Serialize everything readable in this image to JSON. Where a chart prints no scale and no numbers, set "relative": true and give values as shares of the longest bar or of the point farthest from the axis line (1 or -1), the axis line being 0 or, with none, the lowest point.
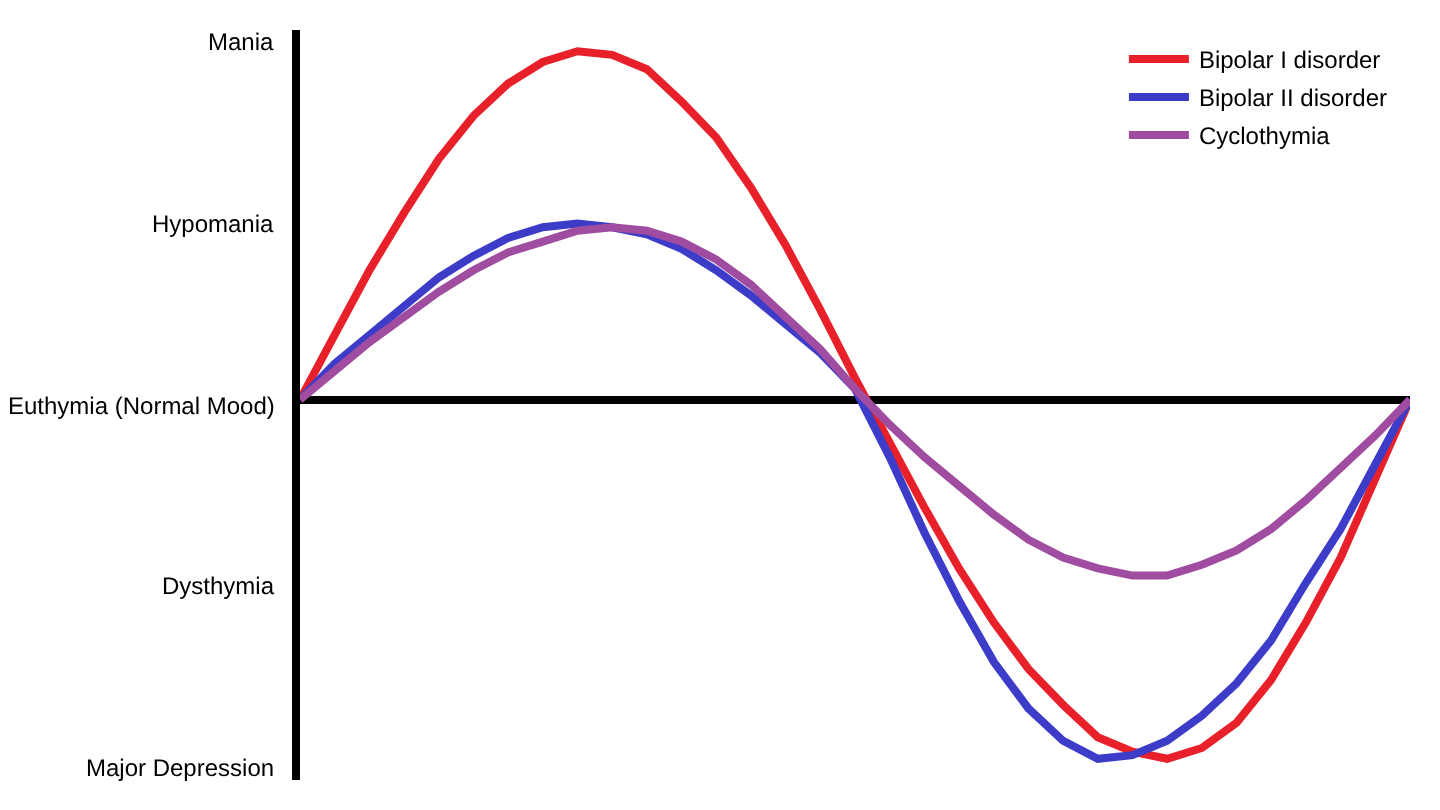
{
  "chart_data": {
    "type": "line",
    "relative": true,
    "categories": [
      null,
      null,
      null,
      null,
      null,
      null,
      null,
      null,
      null,
      null,
      null,
      null,
      null,
      null,
      null,
      null,
      null,
      null,
      null,
      null,
      null,
      null,
      null,
      null,
      null,
      null,
      null,
      null,
      null,
      null,
      null,
      null,
      null
    ],
    "legend": "top right",
    "annotations": [
      "Mania",
      "Hypomania",
      "Euthymia (Normal Mood)",
      "Dysthymia",
      "Major Depression"
    ],
    "series": [
      {
        "name": "Bipolar I disorder",
        "color": "#e8202a",
        "values": [
          0,
          0.18,
          0.36,
          0.52,
          0.67,
          0.79,
          0.88,
          0.94,
          0.97,
          0.96,
          0.92,
          0.83,
          0.73,
          0.59,
          0.43,
          0.25,
          0.06,
          -0.12,
          -0.3,
          -0.47,
          -0.62,
          -0.75,
          -0.85,
          -0.94,
          -0.98,
          -1,
          -0.97,
          -0.9,
          -0.78,
          -0.62,
          -0.44,
          -0.22,
          0
        ]
      },
      {
        "name": "Bipolar II disorder",
        "color": "#3c3cc8",
        "values": [
          0,
          0.1,
          0.18,
          0.26,
          0.34,
          0.4,
          0.45,
          0.48,
          0.49,
          0.48,
          0.46,
          0.42,
          0.36,
          0.29,
          0.21,
          0.13,
          0.03,
          -0.16,
          -0.37,
          -0.56,
          -0.73,
          -0.86,
          -0.95,
          -1,
          -0.99,
          -0.95,
          -0.88,
          -0.79,
          -0.67,
          -0.51,
          -0.36,
          -0.18,
          0
        ]
      },
      {
        "name": "Cyclothymia",
        "color": "#a04ca0",
        "values": [
          0,
          0.08,
          0.16,
          0.23,
          0.3,
          0.36,
          0.41,
          0.44,
          0.47,
          0.48,
          0.47,
          0.44,
          0.39,
          0.32,
          0.23,
          0.14,
          0.03,
          -0.07,
          -0.16,
          -0.24,
          -0.32,
          -0.39,
          -0.44,
          -0.47,
          -0.49,
          -0.49,
          -0.46,
          -0.42,
          -0.36,
          -0.28,
          -0.19,
          -0.1,
          0
        ]
      }
    ]
  }
}
